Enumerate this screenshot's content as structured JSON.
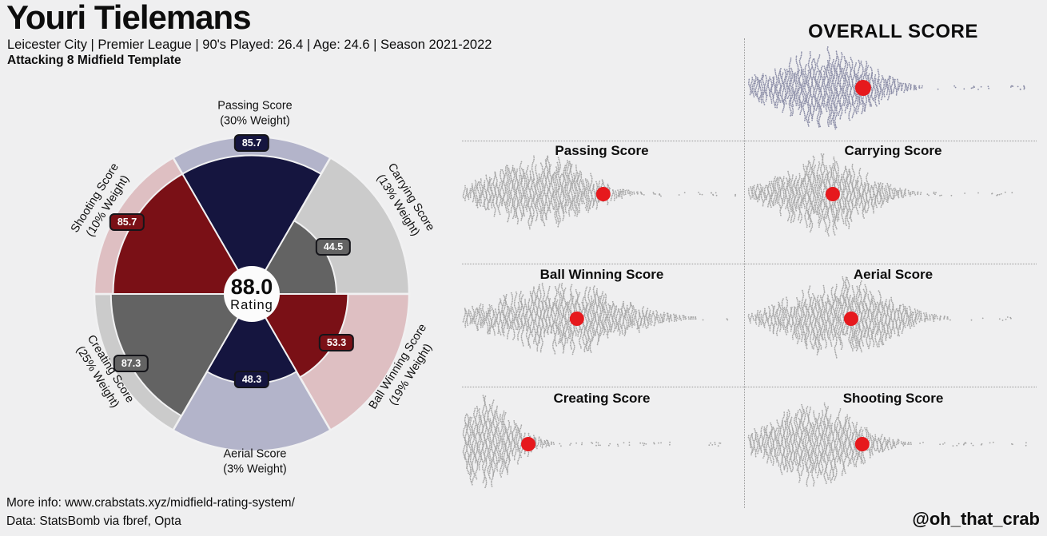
{
  "header": {
    "title": "Youri Tielemans",
    "subtitle": "Leicester City  | Premier League | 90's Played: 26.4 | Age: 24.6 | Season 2021-2022",
    "template": "Attacking 8 Midfield Template"
  },
  "footer": {
    "more_info": "More info: www.crabstats.xyz/midfield-rating-system/",
    "data_source": "Data: StatsBomb via fbref, Opta",
    "signature": "@oh_that_crab"
  },
  "colors": {
    "background": "#efeff0",
    "navy": "#15153f",
    "navy_light": "#b3b4ca",
    "red": "#7a1016",
    "red_light": "#debfc2",
    "gray": "#636363",
    "gray_light": "#cbcbcb",
    "swarm_gray": "#a5a5a5",
    "swarm_slate": "#8a8ca6",
    "marker_red": "#e6191d",
    "center_circle": "#fcfcfc",
    "wedge_stroke": "#f1f1f2",
    "text": "#0d0d0d"
  },
  "chart_data": [
    {
      "type": "radial_weighted_pie",
      "title": "Attacking 8 Midfield rating wheel",
      "value_range": [
        0,
        100
      ],
      "center": {
        "value": "88.0",
        "label": "Rating"
      },
      "segments": [
        {
          "label": "Passing Score",
          "weight": "(30% Weight)",
          "value": 85.7,
          "color_key": "navy"
        },
        {
          "label": "Carrying Score",
          "weight": "(13% Weight)",
          "value": 44.5,
          "color_key": "gray"
        },
        {
          "label": "Ball Winning Score",
          "weight": "(19% Weight)",
          "value": 53.3,
          "color_key": "red"
        },
        {
          "label": "Aerial Score",
          "weight": "(3% Weight)",
          "value": 48.3,
          "color_key": "navy"
        },
        {
          "label": "Creating Score",
          "weight": "(25% Weight)",
          "value": 87.3,
          "color_key": "gray"
        },
        {
          "label": "Shooting Score",
          "weight": "(10% Weight)",
          "value": 85.7,
          "color_key": "red"
        }
      ]
    },
    {
      "type": "beeswarm",
      "title": "OVERALL SCORE",
      "player_value": 88.0,
      "marker_frac": 0.397,
      "half_height": 46,
      "marker_radius": 10,
      "seed": 11,
      "color_key": "swarm_slate",
      "dist": {
        "peak": 0.28,
        "spread_left": 0.17,
        "spread_right": 0.13,
        "tail_end": 0.99
      }
    },
    {
      "type": "beeswarm",
      "title": "Passing Score",
      "player_value": 85.7,
      "marker_frac": 0.505,
      "half_height": 42,
      "marker_radius": 9,
      "seed": 22,
      "color_key": "swarm_gray",
      "dist": {
        "peak": 0.3,
        "spread_left": 0.18,
        "spread_right": 0.14,
        "tail_end": 0.98
      }
    },
    {
      "type": "beeswarm",
      "title": "Carrying Score",
      "player_value": 44.5,
      "marker_frac": 0.293,
      "half_height": 45,
      "marker_radius": 9,
      "seed": 33,
      "color_key": "swarm_gray",
      "dist": {
        "peak": 0.27,
        "spread_left": 0.14,
        "spread_right": 0.13,
        "tail_end": 0.96
      }
    },
    {
      "type": "beeswarm",
      "title": "Ball Winning Score",
      "player_value": 53.3,
      "marker_frac": 0.411,
      "half_height": 40,
      "marker_radius": 9,
      "seed": 44,
      "color_key": "swarm_gray",
      "dist": {
        "peak": 0.37,
        "spread_left": 0.22,
        "spread_right": 0.19,
        "tail_end": 0.98
      }
    },
    {
      "type": "beeswarm",
      "title": "Aerial Score",
      "player_value": 48.3,
      "marker_frac": 0.356,
      "half_height": 45,
      "marker_radius": 9,
      "seed": 55,
      "color_key": "swarm_gray",
      "dist": {
        "peak": 0.32,
        "spread_left": 0.16,
        "spread_right": 0.15,
        "tail_end": 0.97
      }
    },
    {
      "type": "beeswarm",
      "title": "Creating Score",
      "player_value": 87.3,
      "marker_frac": 0.237,
      "half_height": 52,
      "marker_radius": 9,
      "seed": 66,
      "color_key": "swarm_gray",
      "dist": {
        "peak": 0.06,
        "spread_left": 0.1,
        "spread_right": 0.11,
        "tail_end": 0.95
      }
    },
    {
      "type": "beeswarm",
      "title": "Shooting Score",
      "player_value": 85.7,
      "marker_frac": 0.394,
      "half_height": 46,
      "marker_radius": 9,
      "seed": 77,
      "color_key": "swarm_gray",
      "dist": {
        "peak": 0.24,
        "spread_left": 0.15,
        "spread_right": 0.13,
        "tail_end": 0.97
      }
    }
  ]
}
